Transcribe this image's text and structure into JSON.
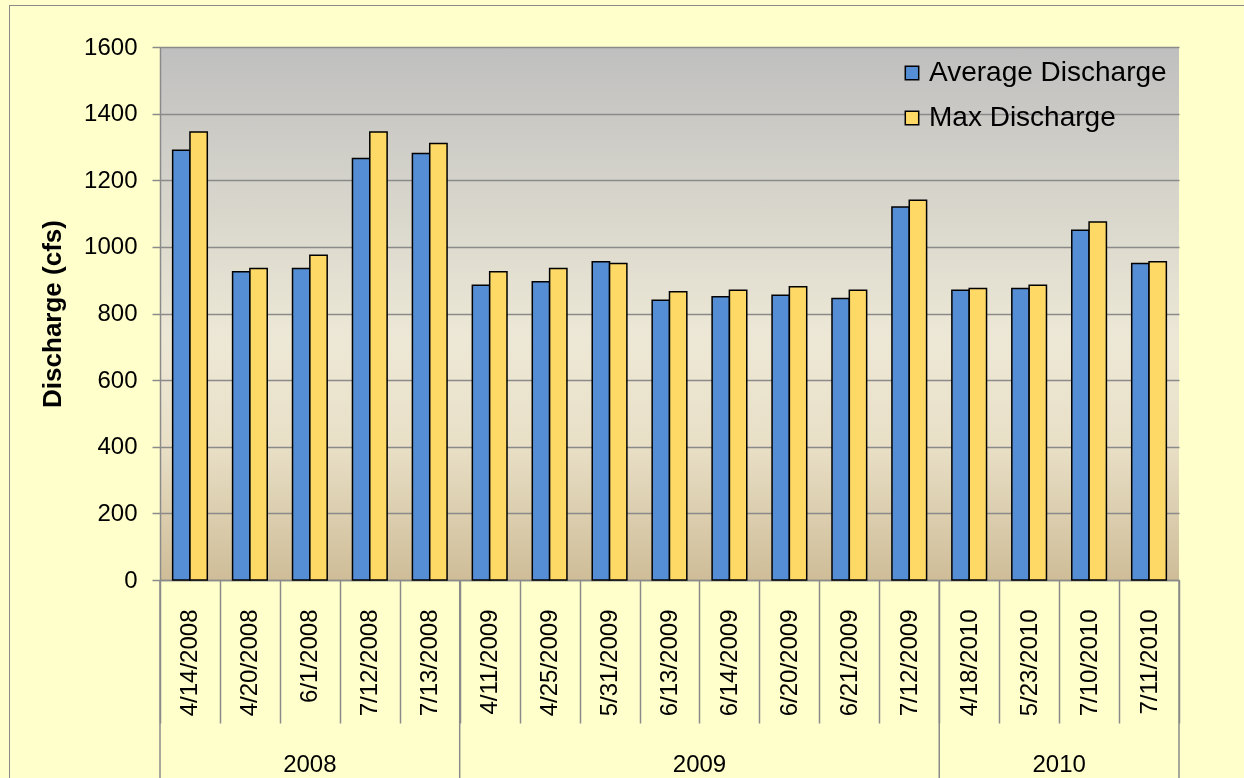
{
  "chart_data": {
    "type": "bar",
    "ylabel": "Discharge (cfs)",
    "categories": [
      "4/14/2008",
      "4/20/2008",
      "6/1/2008",
      "7/12/2008",
      "7/13/2008",
      "4/11/2009",
      "4/25/2009",
      "5/31/2009",
      "6/13/2009",
      "6/14/2009",
      "6/20/2009",
      "6/21/2009",
      "7/12/2009",
      "4/18/2010",
      "5/23/2010",
      "7/10/2010",
      "7/11/2010"
    ],
    "series": [
      {
        "name": "Average Discharge",
        "color": "#558ed5",
        "values": [
          1290,
          925,
          935,
          1265,
          1280,
          885,
          895,
          955,
          840,
          850,
          855,
          845,
          1120,
          870,
          875,
          1050,
          950
        ]
      },
      {
        "name": "Max Discharge",
        "color": "#ffd966",
        "values": [
          1345,
          935,
          975,
          1345,
          1310,
          925,
          935,
          950,
          865,
          870,
          880,
          870,
          1140,
          875,
          885,
          1075,
          955
        ]
      }
    ],
    "ylim": [
      0,
      1600
    ],
    "yticks": [
      0,
      200,
      400,
      600,
      800,
      1000,
      1200,
      1400,
      1600
    ],
    "grid": "y",
    "legend": "top right",
    "annotations": [
      "2008",
      "2009",
      "2010"
    ]
  }
}
